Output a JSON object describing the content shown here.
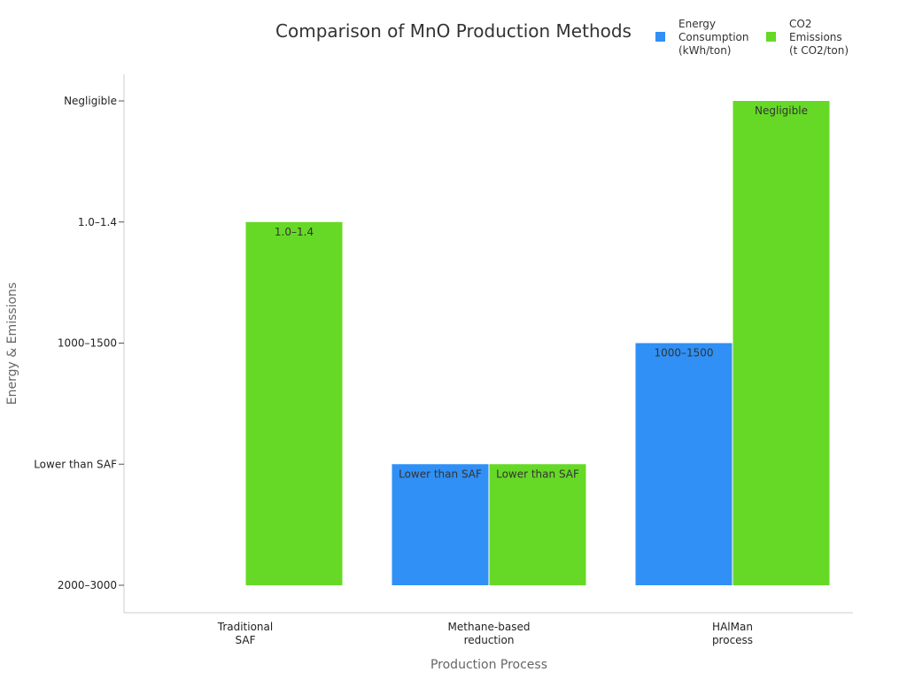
{
  "chart_data": {
    "type": "bar",
    "title": "Comparison of MnO Production Methods",
    "xlabel": "Production Process",
    "ylabel": "Energy & Emissions",
    "y_categories": [
      "2000–3000",
      "Lower than SAF",
      "1000–1500",
      "1.0–1.4",
      "Negligible"
    ],
    "categories": [
      [
        "Traditional",
        "SAF"
      ],
      [
        "Methane-based",
        "reduction"
      ],
      [
        "HAlMan",
        "process"
      ]
    ],
    "series": [
      {
        "name": [
          "Energy",
          "Consumption",
          "(kWh/ton)"
        ],
        "color": "#3090f5",
        "values": [
          "2000–3000",
          "Lower than SAF",
          "1000–1500"
        ]
      },
      {
        "name": [
          "CO2",
          "Emissions",
          "(t CO2/ton)"
        ],
        "color": "#66d926",
        "values": [
          "1.0–1.4",
          "Lower than SAF",
          "Negligible"
        ]
      }
    ],
    "grid": false,
    "legend_position": "top-right"
  }
}
